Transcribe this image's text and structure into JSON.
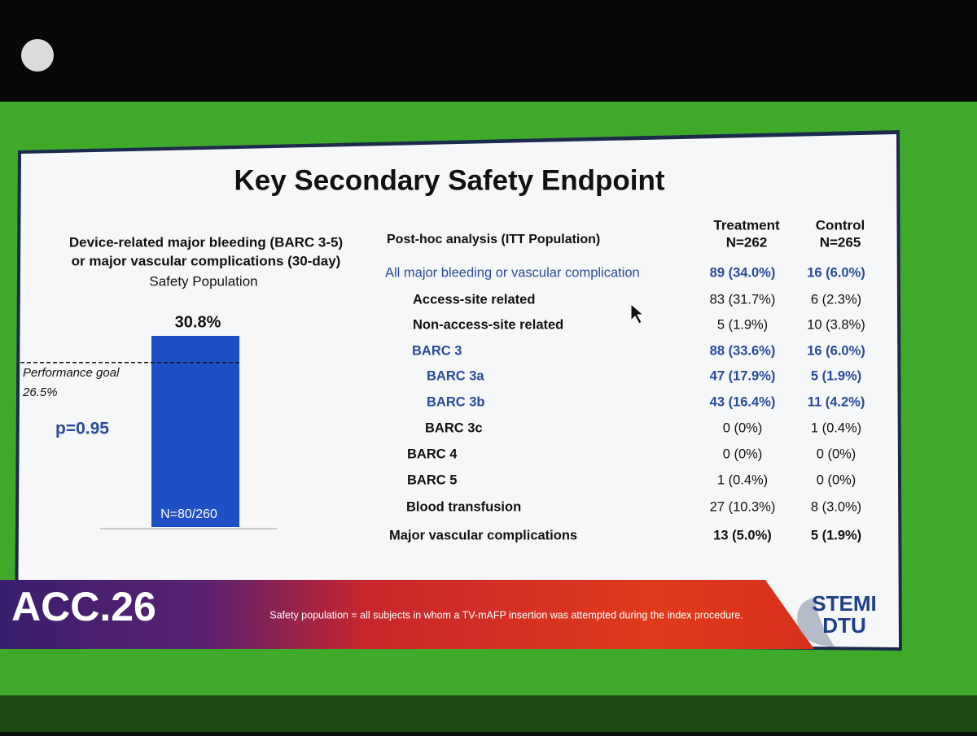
{
  "slide": {
    "title": "Key Secondary Safety Endpoint",
    "footer": {
      "brand": "ACC.26",
      "note": "Safety population = all subjects in whom a TV-mAFP insertion was attempted during the index procedure.",
      "logo_lines": [
        "STEMI",
        "DTU"
      ]
    }
  },
  "chart_data": {
    "type": "bar",
    "title_lines": [
      "Device-related major bleeding (BARC 3-5)",
      "or major vascular complications (30-day)"
    ],
    "subtitle": "Safety Population",
    "values": [
      30.8
    ],
    "value_labels": [
      "30.8%"
    ],
    "bar_labels": [
      "N=80/260"
    ],
    "color": "#1f4fc4",
    "goal": {
      "label": "Performance goal",
      "value": 26.5,
      "value_label": "26.5%"
    },
    "annotation": "p=0.95"
  },
  "table": {
    "caption": "Post-hoc analysis  (ITT Population)",
    "columns": [
      {
        "name": "Treatment",
        "n": "N=262"
      },
      {
        "name": "Control",
        "n": "N=265"
      }
    ],
    "rows": [
      [
        "All major bleeding or vascular complication",
        "89 (34.0%)",
        "16 (6.0%)"
      ],
      [
        "Access-site related",
        "83 (31.7%)",
        "6 (2.3%)"
      ],
      [
        "Non-access-site related",
        "5 (1.9%)",
        "10 (3.8%)"
      ],
      [
        "BARC 3",
        "88 (33.6%)",
        "16 (6.0%)"
      ],
      [
        "BARC 3a",
        "47 (17.9%)",
        "5 (1.9%)"
      ],
      [
        "BARC 3b",
        "43 (16.4%)",
        "11 (4.2%)"
      ],
      [
        "BARC 3c",
        "0 (0%)",
        "1 (0.4%)"
      ],
      [
        "BARC 4",
        "0 (0%)",
        "0 (0%)"
      ],
      [
        "BARC 5",
        "1 (0.4%)",
        "0 (0%)"
      ],
      [
        "Blood transfusion",
        "27 (10.3%)",
        "8 (3.0%)"
      ],
      [
        "Major vascular complications",
        "13 (5.0%)",
        "5 (1.9%)"
      ]
    ]
  }
}
